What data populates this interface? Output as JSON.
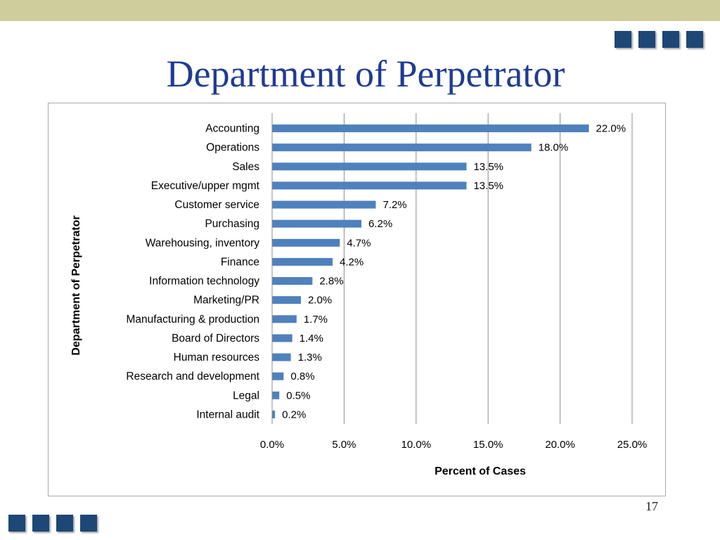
{
  "slide": {
    "title": "Department of Perpetrator",
    "page_number": "17"
  },
  "colors": {
    "top_band": "#cfcd9c",
    "decor_square": "#1d4776",
    "title": "#1f3b95",
    "bar": "#4f81bd"
  },
  "chart_data": {
    "type": "bar",
    "orientation": "horizontal",
    "title": "",
    "xlabel": "Percent of Cases",
    "ylabel": "Department of Perpetrator",
    "xlim": [
      0,
      25
    ],
    "x_ticks": [
      "0.0%",
      "5.0%",
      "10.0%",
      "15.0%",
      "20.0%",
      "25.0%"
    ],
    "grid": "vertical",
    "categories": [
      "Accounting",
      "Operations",
      "Sales",
      "Executive/upper mgmt",
      "Customer service",
      "Purchasing",
      "Warehousing, inventory",
      "Finance",
      "Information technology",
      "Marketing/PR",
      "Manufacturing & production",
      "Board of Directors",
      "Human resources",
      "Research and development",
      "Legal",
      "Internal audit"
    ],
    "values": [
      22.0,
      18.0,
      13.5,
      13.5,
      7.2,
      6.2,
      4.7,
      4.2,
      2.8,
      2.0,
      1.7,
      1.4,
      1.3,
      0.8,
      0.5,
      0.2
    ],
    "data_labels": [
      "22.0%",
      "18.0%",
      "13.5%",
      "13.5%",
      "7.2%",
      "6.2%",
      "4.7%",
      "4.2%",
      "2.8%",
      "2.0%",
      "1.7%",
      "1.4%",
      "1.3%",
      "0.8%",
      "0.5%",
      "0.2%"
    ]
  }
}
